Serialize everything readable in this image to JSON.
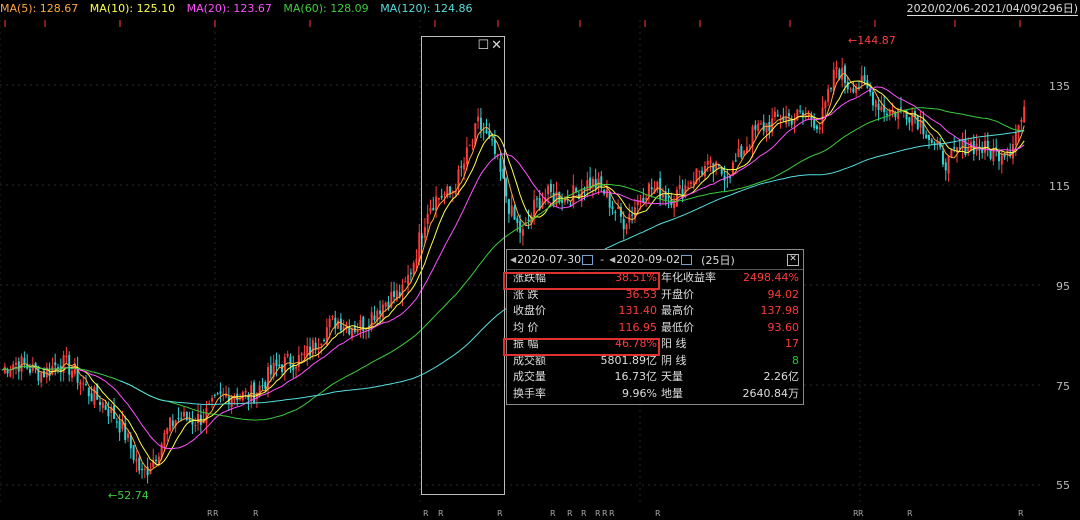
{
  "ma_legend": [
    {
      "label": "MA(5): 128.67",
      "color": "#ffa63c"
    },
    {
      "label": "MA(10): 125.10",
      "color": "#ffff4a"
    },
    {
      "label": "MA(20): 123.67",
      "color": "#ff50ff"
    },
    {
      "label": "MA(60): 128.09",
      "color": "#3ccc3c"
    },
    {
      "label": "MA(120): 124.86",
      "color": "#56dede"
    }
  ],
  "date_range": "2020/02/06-2021/04/09(296日)",
  "y_axis": {
    "ticks": [
      "135",
      "115",
      "95",
      "75",
      "55"
    ]
  },
  "annotations": {
    "high": "144.87",
    "low": "52.74"
  },
  "marker_letter": "R",
  "panel": {
    "start_date": "2020-07-30",
    "separator": "-",
    "end_date": "2020-09-02",
    "days": "(25日)",
    "rows": [
      {
        "k1": "涨跌幅",
        "v1": "38.51%",
        "k2": "年化收益率",
        "v2": "2498.44%"
      },
      {
        "k1": "涨  跌",
        "v1": "36.53",
        "k2": "开盘价",
        "v2": "94.02"
      },
      {
        "k1": "收盘价",
        "v1": "131.40",
        "k2": "最高价",
        "v2": "137.98"
      },
      {
        "k1": "均  价",
        "v1": "116.95",
        "k2": "最低价",
        "v2": "93.60"
      },
      {
        "k1": "振  幅",
        "v1": "46.78%",
        "k2": "阳  线",
        "v2": "17"
      },
      {
        "k1": "成交额",
        "v1": "5801.89亿",
        "k2": "阴  线",
        "v2": "8"
      },
      {
        "k1": "成交量",
        "v1": "16.73亿",
        "k2": "天量",
        "v2": "2.26亿"
      },
      {
        "k1": "换手率",
        "v1": "9.96%",
        "k2": "地量",
        "v2": "2640.84万"
      }
    ]
  },
  "colors": {
    "up": "#ff3b3b",
    "down": "#2fd1d1",
    "highlight": "#e03030"
  }
}
